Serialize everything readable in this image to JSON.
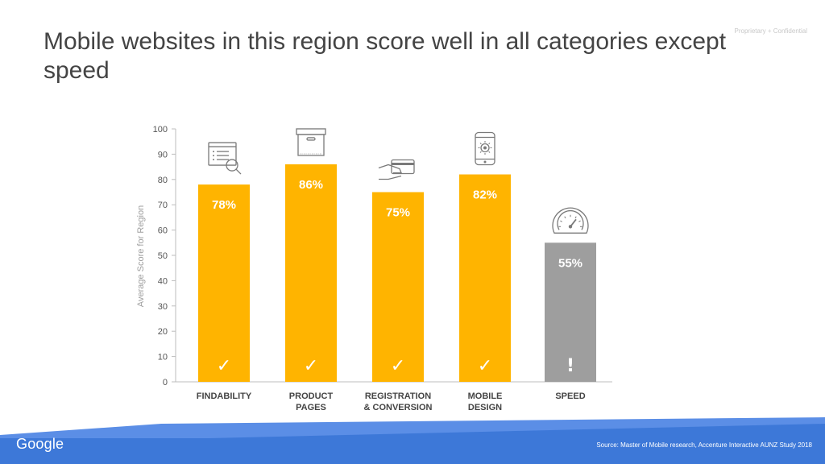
{
  "slide": {
    "title": "Mobile websites in this region score well in all categories except speed",
    "confidential": "Proprietary + Confidential",
    "logo": "Google",
    "source": "Source: Master of Mobile research, Accenture Interactive AUNZ Study 2018"
  },
  "chart_data": {
    "type": "bar",
    "title": "",
    "ylabel": "Average Score for Region",
    "xlabel": "",
    "ylim": [
      0,
      100
    ],
    "yticks": [
      0,
      10,
      20,
      30,
      40,
      50,
      60,
      70,
      80,
      90,
      100
    ],
    "grid": false,
    "categories": [
      {
        "label": [
          "FINDABILITY"
        ],
        "value": 78,
        "value_label": "78%",
        "status": "✓",
        "color": "#FFB400",
        "icon": "search-document-icon"
      },
      {
        "label": [
          "PRODUCT",
          "PAGES"
        ],
        "value": 86,
        "value_label": "86%",
        "status": "✓",
        "color": "#FFB400",
        "icon": "product-box-icon"
      },
      {
        "label": [
          "REGISTRATION",
          "& CONVERSION"
        ],
        "value": 75,
        "value_label": "75%",
        "status": "✓",
        "color": "#FFB400",
        "icon": "credit-card-hand-icon"
      },
      {
        "label": [
          "MOBILE",
          "DESIGN"
        ],
        "value": 82,
        "value_label": "82%",
        "status": "✓",
        "color": "#FFB400",
        "icon": "smartphone-icon"
      },
      {
        "label": [
          "SPEED"
        ],
        "value": 55,
        "value_label": "55%",
        "status": "!",
        "color": "#9E9E9E",
        "icon": "speedometer-icon"
      }
    ]
  },
  "colors": {
    "accent": "#FFB400",
    "speed_bar": "#9E9E9E",
    "footer_blue": "#3D78D8",
    "footer_light": "#5B8EE6"
  }
}
